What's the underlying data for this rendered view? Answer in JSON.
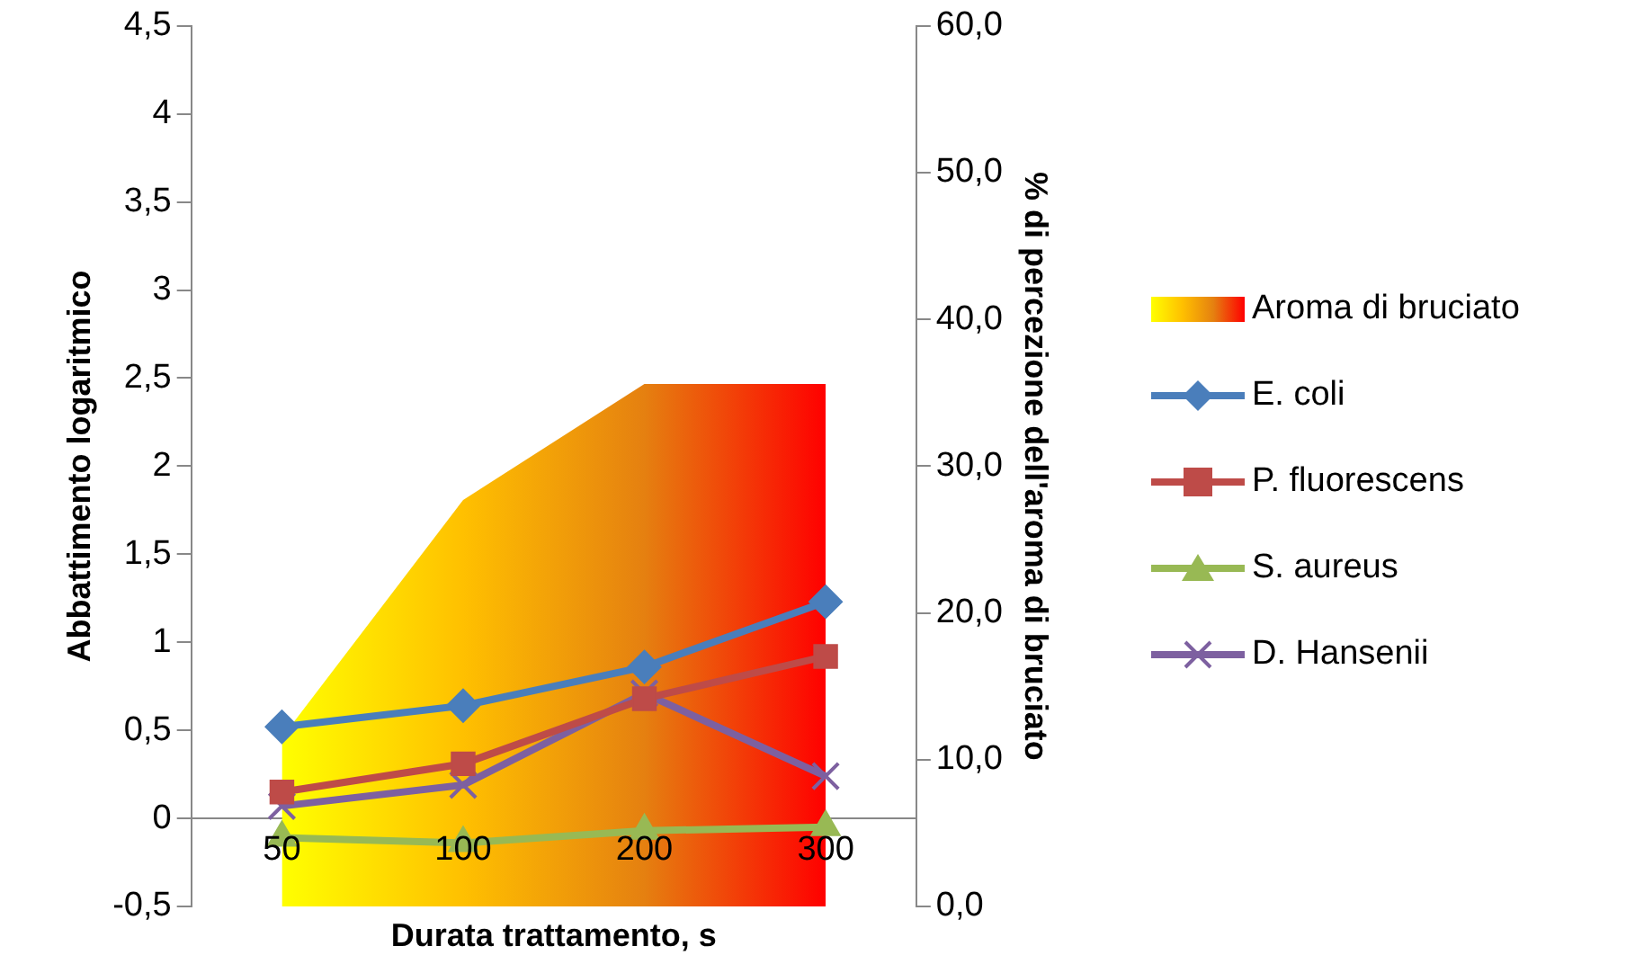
{
  "chart_data": {
    "type": "line",
    "xlabel": "Durata trattamento, s",
    "ylabel": "Abbattimento logaritmico",
    "y2label": "% di percezione dell'aroma di bruciato",
    "categories": [
      "50",
      "100",
      "200",
      "300"
    ],
    "series": [
      {
        "name": "Aroma di bruciato",
        "type": "area",
        "axis": "y2",
        "colors": [
          "#ffff00",
          "#ffc000",
          "#e58010",
          "#ff0000"
        ],
        "color": "#f08020",
        "values": [
          11.5,
          27.7,
          35.6,
          35.6
        ]
      },
      {
        "name": "E. coli",
        "color": "#4a7ebb",
        "marker": "diamond",
        "values": [
          0.52,
          0.64,
          0.86,
          1.23
        ]
      },
      {
        "name": "P. fluorescens",
        "color": "#be4b48",
        "marker": "square",
        "values": [
          0.15,
          0.31,
          0.68,
          0.92
        ]
      },
      {
        "name": "S. aureus",
        "color": "#98b954",
        "marker": "triangle",
        "values": [
          -0.11,
          -0.14,
          -0.07,
          -0.05
        ]
      },
      {
        "name": "D. Hansenii",
        "color": "#7d60a0",
        "marker": "cross",
        "values": [
          0.07,
          0.19,
          0.71,
          0.24
        ]
      }
    ],
    "ylim": [
      -0.5,
      4.5
    ],
    "yticks": [
      {
        "value": -0.5,
        "label": "-0,5"
      },
      0,
      {
        "value": 0.5,
        "label": "0,5"
      },
      1,
      {
        "value": 1.5,
        "label": "1,5"
      },
      2,
      {
        "value": 2.5,
        "label": "2,5"
      },
      3,
      {
        "value": 3.5,
        "label": "3,5"
      },
      4,
      {
        "value": 4.5,
        "label": "4,5"
      }
    ],
    "y2lim": [
      0,
      60
    ],
    "y2ticks": [
      {
        "value": 0,
        "label": "0,0"
      },
      {
        "value": 10,
        "label": "10,0"
      },
      {
        "value": 20,
        "label": "20,0"
      },
      {
        "value": 30,
        "label": "30,0"
      },
      {
        "value": 40,
        "label": "40,0"
      },
      {
        "value": 50,
        "label": "50,0"
      },
      {
        "value": 60,
        "label": "60,0"
      }
    ],
    "grid": false,
    "legend": "right"
  }
}
